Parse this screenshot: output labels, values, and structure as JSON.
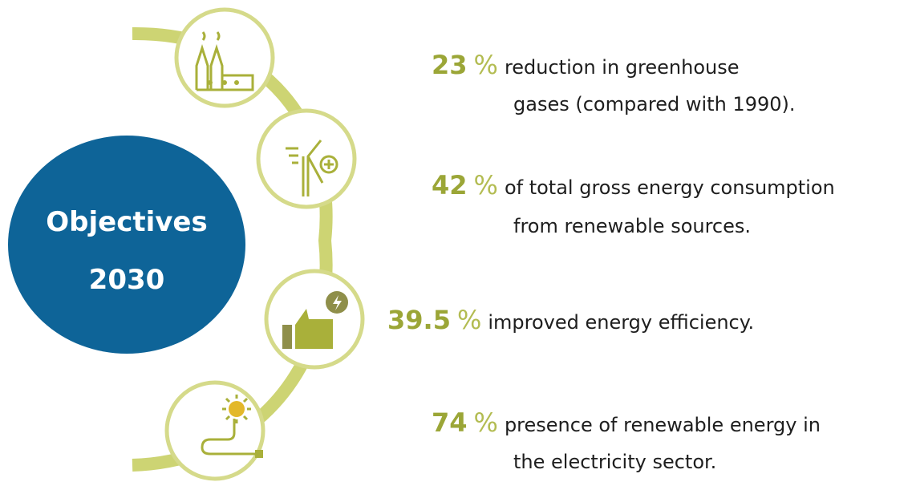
{
  "center": {
    "lines": [
      "Objectives",
      "2030"
    ]
  },
  "items": [
    {
      "value": 23,
      "unit": "%",
      "lines": [
        "reduction in greenhouse",
        "gases (compared with 1990)."
      ]
    },
    {
      "value": 42,
      "unit": "%",
      "lines": [
        "of total gross energy consumption",
        "from renewable sources."
      ]
    },
    {
      "value": 39.5,
      "unit": "%",
      "lines": [
        "improved energy efficiency."
      ]
    },
    {
      "value": 74,
      "unit": "%",
      "lines": [
        "presence of renewable energy in",
        "the electricity sector."
      ]
    }
  ]
}
